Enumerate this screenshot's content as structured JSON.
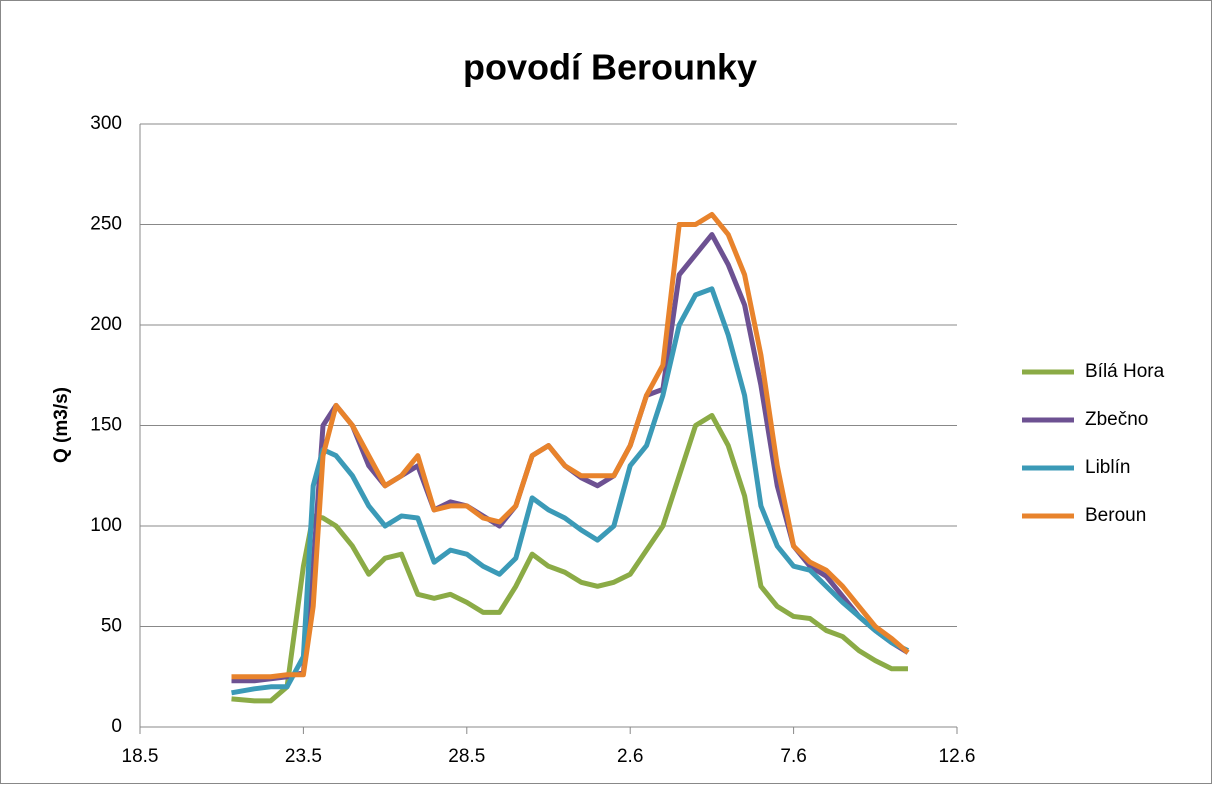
{
  "chart_data": {
    "type": "line",
    "title": "povodí Berounky",
    "y_label": "Q (m3/s)",
    "x": [
      20.8,
      21.5,
      22.0,
      22.5,
      23.0,
      23.3,
      23.6,
      24.0,
      24.5,
      25.0,
      25.5,
      26.0,
      26.5,
      27.0,
      27.5,
      28.0,
      28.5,
      29.0,
      29.5,
      30.0,
      30.5,
      31.0,
      31.5,
      32.0,
      32.5,
      33.0,
      33.5,
      34.0,
      34.5,
      35.0,
      35.5,
      36.0,
      36.5,
      37.0,
      37.5,
      38.0,
      38.5,
      39.0,
      39.5,
      40.0,
      40.5,
      41.0,
      41.5
    ],
    "series": [
      {
        "name": "Bílá Hora",
        "color": "#8bab46",
        "values": [
          14,
          13,
          13,
          20,
          80,
          105,
          104,
          100,
          90,
          76,
          84,
          86,
          66,
          64,
          66,
          62,
          57,
          57,
          70,
          86,
          80,
          77,
          72,
          70,
          72,
          76,
          88,
          100,
          125,
          150,
          155,
          140,
          115,
          70,
          60,
          55,
          54,
          48,
          45,
          38,
          33,
          29,
          29
        ]
      },
      {
        "name": "Zbečno",
        "color": "#6d5192",
        "values": [
          23,
          23,
          24,
          25,
          27,
          80,
          150,
          160,
          150,
          130,
          120,
          125,
          130,
          108,
          112,
          110,
          105,
          100,
          110,
          135,
          140,
          130,
          124,
          120,
          125,
          140,
          165,
          168,
          225,
          235,
          245,
          230,
          210,
          170,
          120,
          90,
          80,
          75,
          65,
          55,
          48,
          42,
          37
        ]
      },
      {
        "name": "Liblín",
        "color": "#3b9ab7",
        "values": [
          17,
          19,
          20,
          20,
          35,
          120,
          138,
          135,
          125,
          110,
          100,
          105,
          104,
          82,
          88,
          86,
          80,
          76,
          84,
          114,
          108,
          104,
          98,
          93,
          100,
          130,
          140,
          165,
          200,
          215,
          218,
          195,
          165,
          110,
          90,
          80,
          78,
          70,
          62,
          55,
          48,
          42,
          38
        ]
      },
      {
        "name": "Beroun",
        "color": "#e8832c",
        "values": [
          25,
          25,
          25,
          26,
          26,
          60,
          135,
          160,
          150,
          135,
          120,
          125,
          135,
          108,
          110,
          110,
          104,
          102,
          110,
          135,
          140,
          130,
          125,
          125,
          125,
          140,
          165,
          180,
          250,
          250,
          255,
          245,
          225,
          185,
          130,
          90,
          82,
          78,
          70,
          60,
          50,
          44,
          37
        ]
      }
    ],
    "xlim": [
      18,
      43
    ],
    "xticks": [
      {
        "value": 18,
        "label": "18.5"
      },
      {
        "value": 23,
        "label": "23.5"
      },
      {
        "value": 28,
        "label": "28.5"
      },
      {
        "value": 33,
        "label": "2.6"
      },
      {
        "value": 38,
        "label": "7.6"
      },
      {
        "value": 43,
        "label": "12.6"
      }
    ],
    "ylim": [
      0,
      300
    ],
    "yticks": [
      0,
      50,
      100,
      150,
      200,
      250,
      300
    ],
    "grid": true,
    "legend": "right"
  }
}
